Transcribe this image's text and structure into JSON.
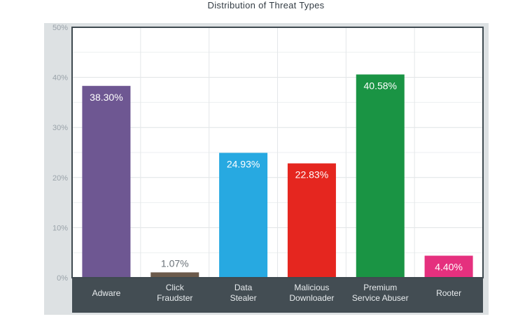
{
  "chart_data": {
    "type": "bar",
    "title": "Distribution of Threat Types",
    "categories": [
      [
        "Adware"
      ],
      [
        "Click",
        "Fraudster"
      ],
      [
        "Data",
        "Stealer"
      ],
      [
        "Malicious",
        "Downloader"
      ],
      [
        "Premium",
        "Service Abuser"
      ],
      [
        "Rooter"
      ]
    ],
    "values": [
      38.3,
      1.07,
      24.93,
      22.83,
      40.58,
      4.4
    ],
    "value_labels": [
      "38.30%",
      "1.07%",
      "24.93%",
      "22.83%",
      "40.58%",
      "4.40%"
    ],
    "bar_colors": [
      "#6e5792",
      "#6b5a4b",
      "#27a9e1",
      "#e5261f",
      "#1a9444",
      "#e5307e"
    ],
    "ylim": [
      0,
      50
    ],
    "yticks": [
      0,
      10,
      20,
      30,
      40,
      50
    ],
    "ytick_labels": [
      "0%",
      "10%",
      "20%",
      "30%",
      "40%",
      "50%"
    ],
    "grid": true,
    "xlabel": "",
    "ylabel": ""
  }
}
